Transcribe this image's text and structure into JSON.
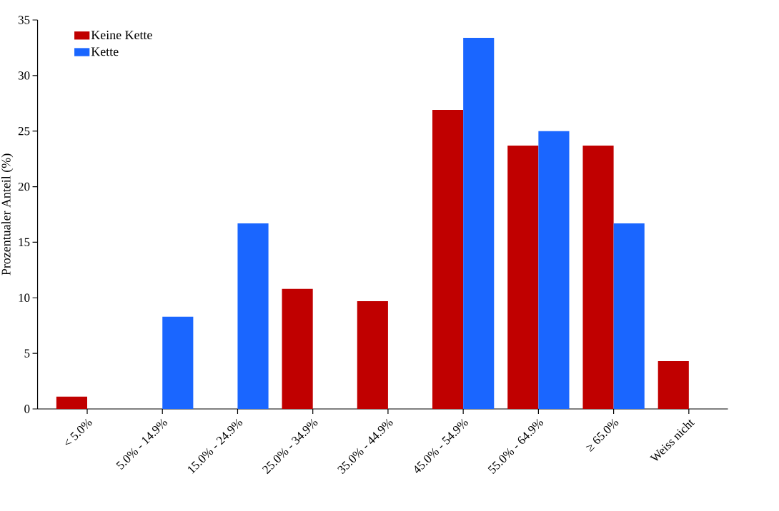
{
  "chart_data": {
    "type": "bar",
    "ylabel": "Prozentualer Anteil (%)",
    "categories": [
      "< 5.0%",
      "5.0% - 14.9%",
      "15.0% - 24.9%",
      "25.0% - 34.9%",
      "35.0% - 44.9%",
      "45.0% - 54.9%",
      "55.0% - 64.9%",
      "≥ 65.0%",
      "Weiss nicht"
    ],
    "series": [
      {
        "name": "Keine Kette",
        "color": "#c00000",
        "values": [
          1.1,
          0,
          0,
          10.8,
          9.7,
          26.9,
          23.7,
          23.7,
          4.3
        ]
      },
      {
        "name": "Kette",
        "color": "#1a66ff",
        "values": [
          0,
          8.3,
          16.7,
          0,
          0,
          33.4,
          25.0,
          16.7,
          0
        ]
      }
    ],
    "ylim": [
      0,
      35
    ],
    "yticks": [
      0,
      5,
      10,
      15,
      20,
      25,
      30,
      35
    ],
    "grid": false,
    "legend": "top left"
  }
}
